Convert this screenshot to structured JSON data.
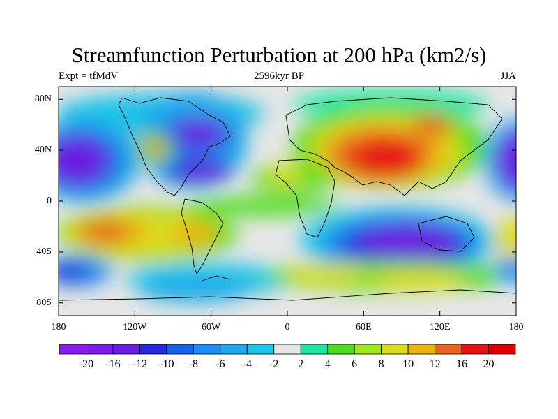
{
  "title": "Streamfunction Perturbation at 200 hPa (km2/s)",
  "subtitle_left": "Expt = tfMdV",
  "subtitle_center": "2596kyr BP",
  "subtitle_right": "JJA",
  "y_ticks": [
    {
      "label": "80N",
      "value": 80
    },
    {
      "label": "40N",
      "value": 40
    },
    {
      "label": "0",
      "value": 0
    },
    {
      "label": "40S",
      "value": -40
    },
    {
      "label": "80S",
      "value": -80
    }
  ],
  "x_ticks": [
    {
      "label": "180",
      "value": -180
    },
    {
      "label": "120W",
      "value": -120
    },
    {
      "label": "60W",
      "value": -60
    },
    {
      "label": "0",
      "value": 0
    },
    {
      "label": "60E",
      "value": 60
    },
    {
      "label": "120E",
      "value": 120
    },
    {
      "label": "180",
      "value": 180
    }
  ],
  "colorbar": {
    "colors": [
      "#8c1eeb",
      "#7d1ee6",
      "#6a1ee1",
      "#2828dc",
      "#1464e6",
      "#1e8cf0",
      "#1eaaeb",
      "#1ec3e6",
      "#e6e6e6",
      "#1ee6a0",
      "#50dc1e",
      "#a0e61e",
      "#dcdc1e",
      "#ebb414",
      "#e6641e",
      "#e61414",
      "#dc0000"
    ],
    "labels": [
      "-20",
      "-16",
      "-12",
      "-10",
      "-8",
      "-6",
      "-4",
      "-2",
      "2",
      "4",
      "6",
      "8",
      "10",
      "12",
      "16",
      "20"
    ]
  }
}
